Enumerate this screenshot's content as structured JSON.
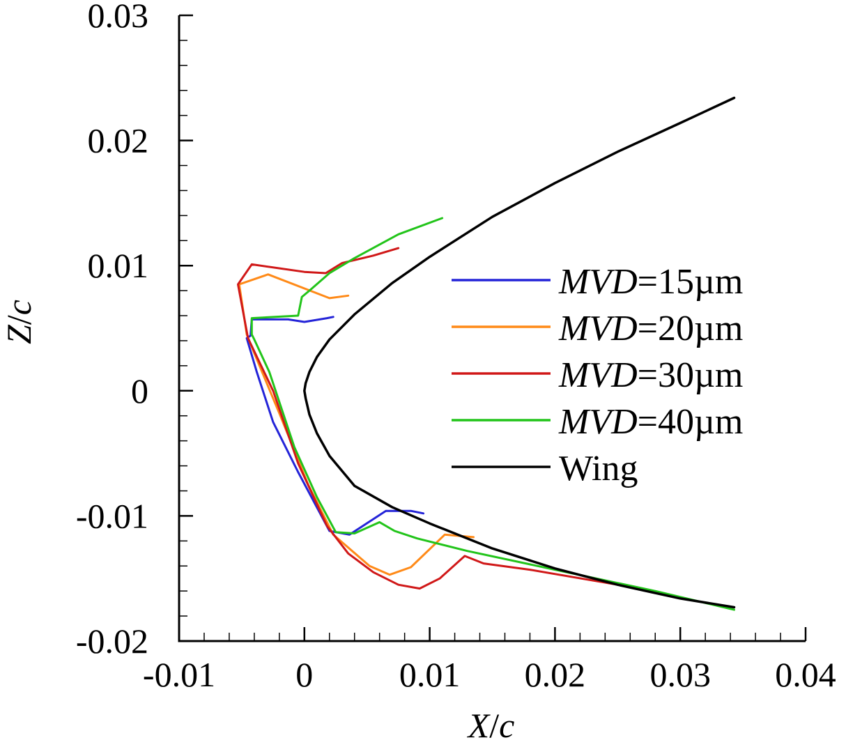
{
  "chart_data": {
    "type": "line",
    "title": "",
    "xlabel": {
      "var": "X",
      "sep": "/",
      "den": "c"
    },
    "ylabel": {
      "var": "Z",
      "sep": "/",
      "den": "c"
    },
    "xlim": [
      -0.01,
      0.04
    ],
    "ylim": [
      -0.02,
      0.03
    ],
    "xticks": [
      -0.01,
      0,
      0.01,
      0.02,
      0.03,
      0.04
    ],
    "xtick_labels": [
      "-0.01",
      "0",
      "0.01",
      "0.02",
      "0.03",
      "0.04"
    ],
    "yticks": [
      -0.02,
      -0.01,
      0,
      0.01,
      0.02,
      0.03
    ],
    "ytick_labels": [
      "-0.02",
      "-0.01",
      "0",
      "0.01",
      "0.02",
      "0.03"
    ],
    "legend_position": "center-right",
    "series": [
      {
        "name": "MVD=15µm",
        "label_italic": "MVD",
        "label_rest": "=15µm",
        "color": "#2424d8",
        "x": [
          0.0023,
          0.0018,
          0.0,
          -0.0013,
          -0.0042,
          -0.0043,
          -0.0046,
          -0.0038,
          -0.0025,
          -0.0005,
          0.002,
          0.0036,
          0.0065,
          0.0085,
          0.0095
        ],
        "y": [
          0.0059,
          0.0058,
          0.0055,
          0.0057,
          0.0057,
          0.0044,
          0.0042,
          0.0015,
          -0.0025,
          -0.0065,
          -0.0112,
          -0.0115,
          -0.0096,
          -0.0096,
          -0.0098
        ]
      },
      {
        "name": "MVD=20µm",
        "label_italic": "MVD",
        "label_rest": "=20µm",
        "color": "#ff8a18",
        "x": [
          0.0035,
          0.002,
          -0.0029,
          -0.0052,
          -0.0046,
          -0.004,
          -0.002,
          0.0003,
          0.0023,
          0.0052,
          0.0068,
          0.0085,
          0.0112,
          0.0135
        ],
        "y": [
          0.0076,
          0.0074,
          0.0093,
          0.0085,
          0.0045,
          0.003,
          -0.0018,
          -0.0075,
          -0.0115,
          -0.014,
          -0.0147,
          -0.0141,
          -0.0115,
          -0.0117
        ]
      },
      {
        "name": "MVD=30µm",
        "label_italic": "MVD",
        "label_rest": "=30µm",
        "color": "#d01818",
        "x": [
          0.0075,
          0.0055,
          0.003,
          0.0017,
          0.0,
          -0.0042,
          -0.0053,
          -0.0045,
          -0.0025,
          -0.0005,
          0.0018,
          0.0035,
          0.0055,
          0.0075,
          0.0092,
          0.0108,
          0.0128,
          0.0143,
          0.018,
          0.025
        ],
        "y": [
          0.0114,
          0.0108,
          0.0102,
          0.0094,
          0.0095,
          0.0101,
          0.0085,
          0.0042,
          0.0,
          -0.0058,
          -0.0108,
          -0.013,
          -0.0145,
          -0.0155,
          -0.0158,
          -0.015,
          -0.0132,
          -0.0138,
          -0.0143,
          -0.0155
        ]
      },
      {
        "name": "MVD=40µm",
        "label_italic": "MVD",
        "label_rest": "=40µm",
        "color": "#22c41a",
        "x": [
          0.011,
          0.0075,
          0.004,
          0.002,
          0.0004,
          -0.0002,
          -0.0005,
          -0.0042,
          -0.0042,
          -0.004,
          -0.0028,
          -0.0008,
          0.001,
          0.0025,
          0.004,
          0.006,
          0.0072,
          0.009,
          0.013,
          0.02,
          0.028,
          0.0343
        ],
        "y": [
          0.0138,
          0.0125,
          0.0106,
          0.0094,
          0.008,
          0.0075,
          0.006,
          0.0058,
          0.0045,
          0.0041,
          0.0015,
          -0.0045,
          -0.0085,
          -0.0113,
          -0.0114,
          -0.0105,
          -0.0112,
          -0.0118,
          -0.0128,
          -0.0143,
          -0.016,
          -0.0175
        ]
      },
      {
        "name": "Wing",
        "label_italic": "",
        "label_rest": "Wing",
        "color": "#000000",
        "x": [
          0.0343,
          0.03,
          0.025,
          0.02,
          0.015,
          0.01,
          0.007,
          0.004,
          0.002,
          0.001,
          0.0004,
          0.0001,
          0.0,
          0.0001,
          0.0004,
          0.001,
          0.002,
          0.004,
          0.007,
          0.01,
          0.015,
          0.02,
          0.025,
          0.03,
          0.0343
        ],
        "y": [
          0.0234,
          0.0214,
          0.0191,
          0.0166,
          0.0139,
          0.0107,
          0.0086,
          0.0061,
          0.0041,
          0.0027,
          0.0015,
          0.0006,
          0.0,
          -0.0006,
          -0.0019,
          -0.0034,
          -0.0052,
          -0.0076,
          -0.0093,
          -0.0106,
          -0.0126,
          -0.0142,
          -0.0155,
          -0.0166,
          -0.0173
        ]
      }
    ]
  }
}
